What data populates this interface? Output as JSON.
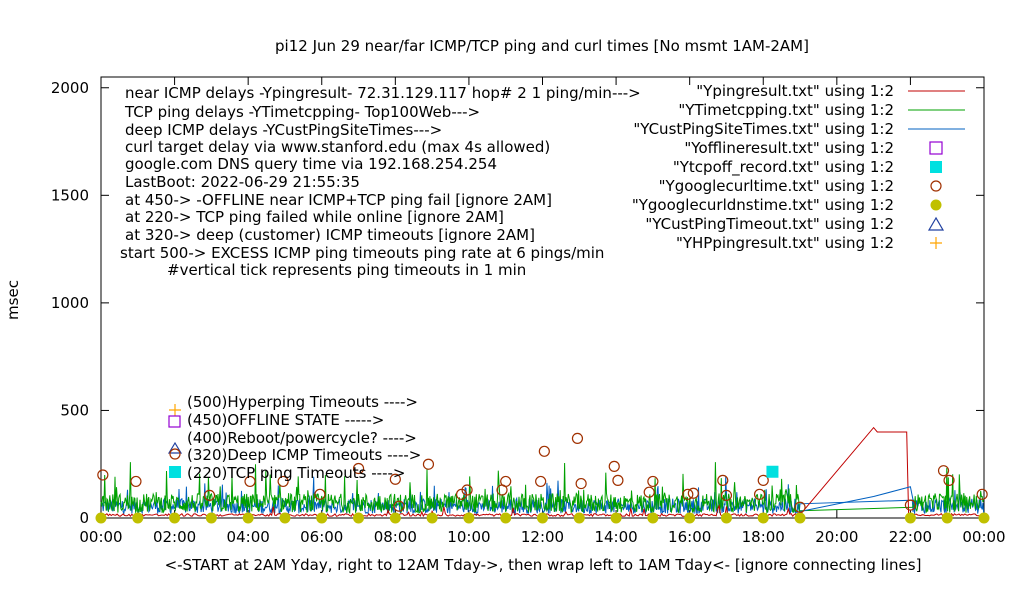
{
  "chart_data": {
    "type": "line",
    "title": "pi12  Jun 29  near/far ICMP/TCP ping and curl times [No msmt 1AM-2AM]",
    "xlabel": "<-START at 2AM Yday, right to 12AM Tday->, then wrap left to 1AM Tday<- [ignore connecting lines]",
    "ylabel": "msec",
    "x_ticks": [
      "00:00",
      "02:00",
      "04:00",
      "06:00",
      "08:00",
      "10:00",
      "12:00",
      "14:00",
      "16:00",
      "18:00",
      "20:00",
      "22:00",
      "00:00"
    ],
    "y_ticks": [
      "0",
      "500",
      "1000",
      "1500",
      "2000"
    ],
    "xlim_hours": [
      0,
      24
    ],
    "ylim": [
      0,
      2050
    ],
    "grid": false,
    "annotations_top_left": [
      "near ICMP delays -Ypingresult- 72.31.129.117 hop# 2  1 ping/min--->",
      "TCP ping delays -YTimetcpping- Top100Web--->",
      "deep ICMP delays -YCustPingSiteTimes--->",
      "curl target delay via www.stanford.edu (max 4s allowed)",
      "google.com DNS query time via 192.168.254.254",
      "LastBoot: 2022-06-29 21:55:35",
      "at 450-> -OFFLINE near ICMP+TCP ping fail [ignore 2AM]",
      "at 220-> TCP ping failed while online [ignore 2AM]",
      "at 320-> deep (customer) ICMP timeouts [ignore 2AM]",
      "start 500-> EXCESS ICMP ping timeouts ping rate at 6 pings/min",
      "#vertical tick represents ping timeouts in 1 min"
    ],
    "annotations_markers": [
      "(500)Hyperping Timeouts ---->",
      "(450)OFFLINE STATE ----->",
      "(400)Reboot/powercycle? ---->",
      "(320)Deep ICMP Timeouts ---->",
      "(220)TCP ping Timeouts ---->"
    ],
    "legend_position": "top-right",
    "legend": [
      {
        "name": "\"Ypingresult.txt\" using 1:2",
        "style": "line",
        "color": "#c00000"
      },
      {
        "name": "\"YTimetcpping.txt\" using 1:2",
        "style": "line",
        "color": "#00a000"
      },
      {
        "name": "\"YCustPingSiteTimes.txt\" using 1:2",
        "style": "line",
        "color": "#0060c0"
      },
      {
        "name": "\"Yofflineresult.txt\" using 1:2",
        "style": "open-square",
        "color": "#9400d3"
      },
      {
        "name": "\"Ytcpoff_record.txt\" using 1:2",
        "style": "filled-square",
        "color": "#00e0e0"
      },
      {
        "name": "\"Ygooglecurltime.txt\" using 1:2",
        "style": "open-circle",
        "color": "#a03000"
      },
      {
        "name": "\"Ygooglecurldnstime.txt\" using 1:2",
        "style": "filled-circle",
        "color": "#c0c000"
      },
      {
        "name": "\"YCustPingTimeout.txt\" using 1:2",
        "style": "open-triangle",
        "color": "#2040a0"
      },
      {
        "name": "\"YHPpingresult.txt\" using 1:2",
        "style": "plus",
        "color": "#ffa500"
      }
    ],
    "series": [
      {
        "name": "\"Ypingresult.txt\" using 1:2",
        "baseline": 15,
        "points": [
          [
            19.0,
            15
          ],
          [
            21.0,
            420
          ],
          [
            21.1,
            400
          ],
          [
            21.9,
            400
          ],
          [
            21.95,
            15
          ]
        ]
      },
      {
        "name": "\"YTimetcpping.txt\" using 1:2",
        "baseline": 60,
        "peaks": [
          [
            0.1,
            200
          ],
          [
            0.8,
            260
          ],
          [
            1.5,
            120
          ],
          [
            4.2,
            250
          ],
          [
            6.1,
            200
          ],
          [
            10.8,
            220
          ],
          [
            16.7,
            260
          ],
          [
            18.6,
            120
          ],
          [
            22.8,
            110
          ]
        ]
      },
      {
        "name": "\"YCustPingSiteTimes.txt\" using 1:2",
        "baseline": 50,
        "points": [
          [
            19.0,
            30
          ],
          [
            21.0,
            100
          ],
          [
            22.0,
            145
          ],
          [
            22.1,
            60
          ]
        ]
      },
      {
        "name": "\"Ytcpoff_record.txt\" using 1:2",
        "values": [
          [
            18.25,
            215
          ]
        ]
      },
      {
        "name": "\"Ygooglecurltime.txt\" using 1:2",
        "values": [
          [
            0.05,
            200
          ],
          [
            0.95,
            170
          ],
          [
            2.95,
            105
          ],
          [
            4.05,
            170
          ],
          [
            4.95,
            170
          ],
          [
            5.95,
            110
          ],
          [
            7.0,
            230
          ],
          [
            8.0,
            180
          ],
          [
            8.1,
            55
          ],
          [
            8.9,
            250
          ],
          [
            9.8,
            110
          ],
          [
            9.95,
            130
          ],
          [
            10.9,
            130
          ],
          [
            11.0,
            170
          ],
          [
            11.95,
            170
          ],
          [
            12.05,
            310
          ],
          [
            12.95,
            370
          ],
          [
            13.05,
            160
          ],
          [
            13.95,
            240
          ],
          [
            14.05,
            175
          ],
          [
            14.9,
            120
          ],
          [
            15.0,
            170
          ],
          [
            15.95,
            110
          ],
          [
            16.1,
            115
          ],
          [
            16.9,
            175
          ],
          [
            17.0,
            105
          ],
          [
            17.9,
            110
          ],
          [
            18.0,
            175
          ],
          [
            19.0,
            50
          ],
          [
            22.0,
            60
          ],
          [
            22.9,
            220
          ],
          [
            23.05,
            175
          ],
          [
            23.95,
            110
          ]
        ]
      },
      {
        "name": "\"Ygooglecurldnstime.txt\" using 1:2",
        "values": [
          [
            0,
            0
          ],
          [
            1,
            0
          ],
          [
            2,
            0
          ],
          [
            3,
            0
          ],
          [
            4,
            0
          ],
          [
            5,
            0
          ],
          [
            6,
            0
          ],
          [
            7,
            0
          ],
          [
            8,
            0
          ],
          [
            9,
            0
          ],
          [
            10,
            0
          ],
          [
            11,
            0
          ],
          [
            12,
            0
          ],
          [
            13,
            0
          ],
          [
            14,
            0
          ],
          [
            15,
            0
          ],
          [
            16,
            0
          ],
          [
            17,
            0
          ],
          [
            18,
            0
          ],
          [
            19,
            0
          ],
          [
            22,
            0
          ],
          [
            23,
            0
          ],
          [
            24,
            0
          ]
        ]
      }
    ]
  }
}
